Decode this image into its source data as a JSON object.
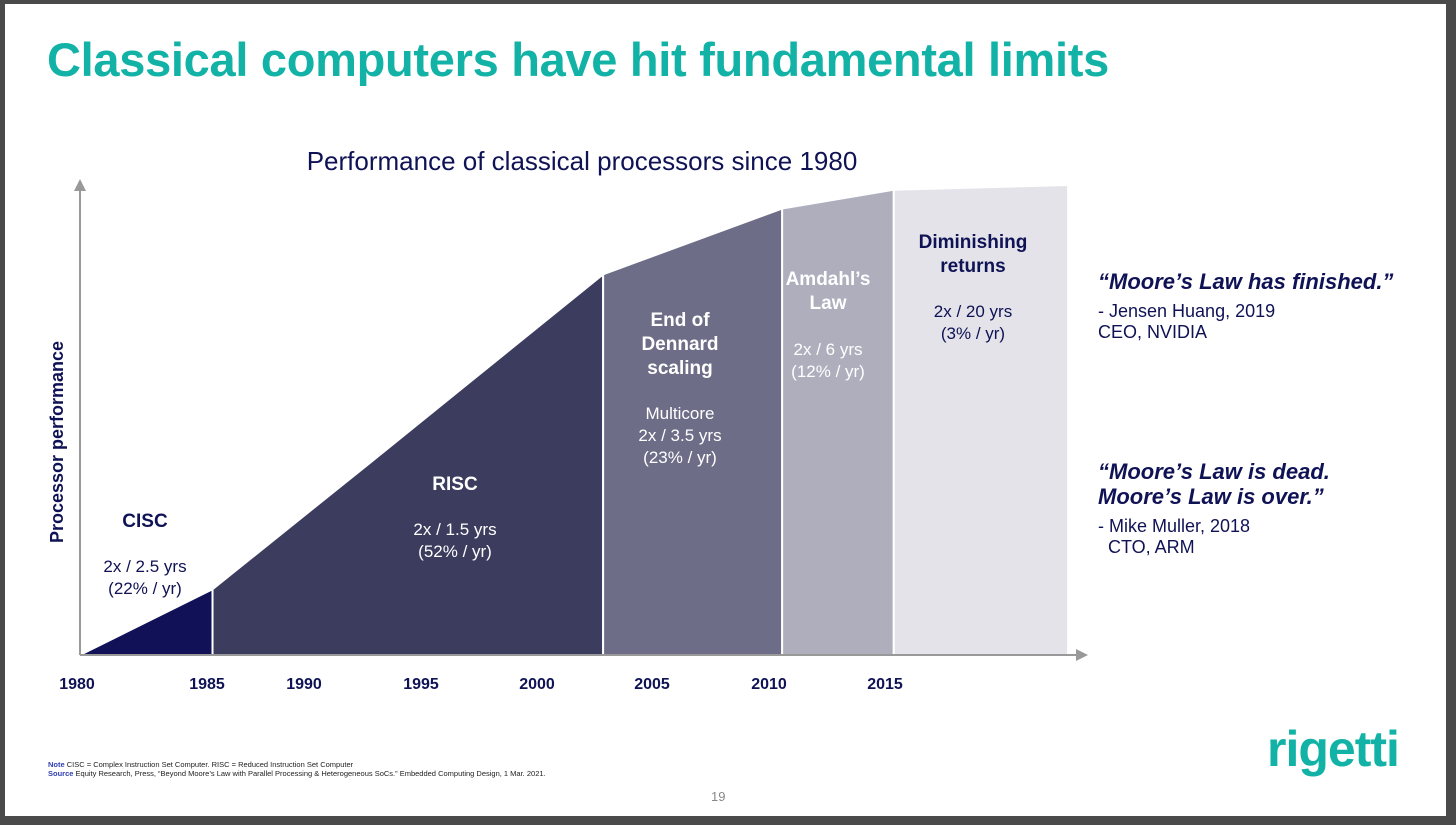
{
  "slide": {
    "title": "Classical computers have hit fundamental limits",
    "page_number": "19",
    "logo_text": "rigetti"
  },
  "colors": {
    "title": "#12b3a6",
    "navy": "#0f1254",
    "cisc": "#111158",
    "risc": "#3c3c5e",
    "dennard": "#6d6d87",
    "amdahl": "#aeaebd",
    "diminishing": "#e3e3e9",
    "logo": "#12b3a6"
  },
  "chart_data": {
    "type": "area",
    "title": "Performance of classical processors since 1980",
    "ylabel": "Processor performance",
    "xlabel": "",
    "x_ticks": [
      "1980",
      "1985",
      "1990",
      "1995",
      "2000",
      "2005",
      "2010",
      "2015"
    ],
    "curve": [
      {
        "year": 1980,
        "rel": 0.0
      },
      {
        "year": 1985.7,
        "rel": 0.14
      },
      {
        "year": 1992.5,
        "rel": 0.41
      },
      {
        "year": 2002.5,
        "rel": 0.81
      },
      {
        "year": 2010.2,
        "rel": 0.95
      },
      {
        "year": 2015,
        "rel": 0.99
      },
      {
        "year": 2022.5,
        "rel": 1.0
      }
    ],
    "regions": [
      {
        "name": "cisc",
        "label": "CISC",
        "detail": [
          "2x / 2.5 yrs",
          "(22% / yr)"
        ],
        "start": 1980,
        "end": 1985.7
      },
      {
        "name": "risc",
        "label": "RISC",
        "detail": [
          "2x / 1.5 yrs",
          "(52% / yr)"
        ],
        "start": 1985.7,
        "end": 2002.5
      },
      {
        "name": "dennard",
        "label": "End of Dennard scaling",
        "label_lines": [
          "End of",
          "Dennard",
          "scaling"
        ],
        "detail": [
          "Multicore",
          "2x / 3.5 yrs",
          "(23% / yr)"
        ],
        "start": 2002.5,
        "end": 2010.2
      },
      {
        "name": "amdahl",
        "label": "Amdahl's Law",
        "label_lines": [
          "Amdahl’s",
          "Law"
        ],
        "detail": [
          "2x / 6 yrs",
          "(12% / yr)"
        ],
        "start": 2010.2,
        "end": 2015
      },
      {
        "name": "diminishing",
        "label": "Diminishing returns",
        "label_lines": [
          "Diminishing",
          "returns"
        ],
        "detail": [
          "2x / 20 yrs",
          "(3% / yr)"
        ],
        "start": 2015,
        "end": 2022.5
      }
    ],
    "grid": false,
    "legend": "none"
  },
  "quotes": [
    {
      "text_lines": [
        "“Moore’s Law has finished.”"
      ],
      "attribution_lines": [
        "- Jensen Huang, 2019",
        "CEO, NVIDIA"
      ]
    },
    {
      "text_lines": [
        "“Moore’s Law is dead.",
        "Moore’s Law is over.”"
      ],
      "attribution_lines": [
        "- Mike Muller, 2018",
        "  CTO, ARM"
      ]
    }
  ],
  "notes": {
    "note_label": "Note",
    "note_text": " CISC = Complex Instruction Set Computer. RISC = Reduced Instruction Set Computer",
    "source_label": "Source",
    "source_text": " Equity Research, Press, “Beyond Moore’s Law with Parallel Processing & Heterogeneous SoCs.” Embedded Computing Design, 1 Mar. 2021."
  }
}
